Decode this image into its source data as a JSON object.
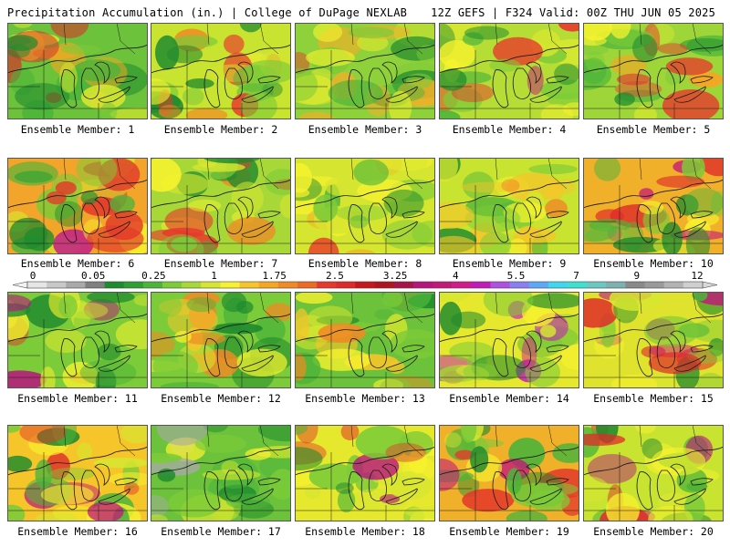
{
  "header": {
    "left": "Precipitation Accumulation (in.) | College of DuPage NEXLAB",
    "right": "12Z GEFS | F324 Valid: 00Z THU JUN 05 2025"
  },
  "caption_prefix": "Ensemble Member: ",
  "members": [
    {
      "label": "Ensemble Member: 1",
      "tint": "#6cc23a",
      "hot": [
        "#d7332a",
        "#f5a623"
      ]
    },
    {
      "label": "Ensemble Member: 2",
      "tint": "#c8e330",
      "hot": [
        "#e8382c",
        "#f08a24"
      ]
    },
    {
      "label": "Ensemble Member: 3",
      "tint": "#8fd13a",
      "hot": [
        "#e23a2a",
        "#f2b02a"
      ]
    },
    {
      "label": "Ensemble Member: 4",
      "tint": "#b6dc36",
      "hot": [
        "#c4177a",
        "#e8382c"
      ]
    },
    {
      "label": "Ensemble Member: 5",
      "tint": "#9ed63a",
      "hot": [
        "#e8382c",
        "#f5a623"
      ]
    },
    {
      "label": "Ensemble Member: 6",
      "tint": "#f3a42a",
      "hot": [
        "#c21a8a",
        "#e23a2a"
      ]
    },
    {
      "label": "Ensemble Member: 7",
      "tint": "#a8d838",
      "hot": [
        "#e8382c",
        "#f08a24"
      ]
    },
    {
      "label": "Ensemble Member: 8",
      "tint": "#d6e630",
      "hot": [
        "#e8382c",
        "#f5a623"
      ]
    },
    {
      "label": "Ensemble Member: 9",
      "tint": "#c8e330",
      "hot": [
        "#f08a24",
        "#f5c52a"
      ]
    },
    {
      "label": "Ensemble Member: 10",
      "tint": "#f0b02a",
      "hot": [
        "#e02a2a",
        "#c4177a"
      ]
    },
    {
      "label": "Ensemble Member: 11",
      "tint": "#7ccb38",
      "hot": [
        "#e23a2a",
        "#b8147e"
      ]
    },
    {
      "label": "Ensemble Member: 12",
      "tint": "#7ccb38",
      "hot": [
        "#f08a24",
        "#f5c52a"
      ]
    },
    {
      "label": "Ensemble Member: 13",
      "tint": "#6cc23a",
      "hot": [
        "#f08a24",
        "#f5c52a"
      ]
    },
    {
      "label": "Ensemble Member: 14",
      "tint": "#e6e82e",
      "hot": [
        "#c21ab8",
        "#d31a8a"
      ]
    },
    {
      "label": "Ensemble Member: 15",
      "tint": "#e0e32e",
      "hot": [
        "#e02a2a",
        "#c4177a"
      ]
    },
    {
      "label": "Ensemble Member: 16",
      "tint": "#f5c52a",
      "hot": [
        "#e23a2a",
        "#c4177a"
      ]
    },
    {
      "label": "Ensemble Member: 17",
      "tint": "#6cc23a",
      "hot": [
        "#a9a9a9",
        "#c8e330"
      ]
    },
    {
      "label": "Ensemble Member: 18",
      "tint": "#e6e82e",
      "hot": [
        "#e23a2a",
        "#b8147e"
      ]
    },
    {
      "label": "Ensemble Member: 19",
      "tint": "#f0b02a",
      "hot": [
        "#e23a2a",
        "#c4177a"
      ]
    },
    {
      "label": "Ensemble Member: 20",
      "tint": "#c8e330",
      "hot": [
        "#e02a2a",
        "#b8147e"
      ]
    }
  ],
  "colorbar": {
    "tick_labels": [
      "0",
      "0.05",
      "0.25",
      "1",
      "1.75",
      "2.5",
      "3.25",
      "4",
      "5.5",
      "7",
      "9",
      "12"
    ],
    "colors": [
      "#e6e6e6",
      "#c8c8c8",
      "#a9a9a9",
      "#7f7f7f",
      "#1f8a2e",
      "#2f9f34",
      "#4cb43a",
      "#7ccb38",
      "#a8d838",
      "#d6e630",
      "#f7f22e",
      "#f5c52a",
      "#f5a623",
      "#f08a24",
      "#ec6a24",
      "#e8382c",
      "#e02a2a",
      "#c8161e",
      "#b0141e",
      "#a8144a",
      "#b8147e",
      "#c4177a",
      "#d31a8a",
      "#c21ab8",
      "#b050e0",
      "#8a7ef0",
      "#5fa8f5",
      "#3fd6f0",
      "#3fe0d0",
      "#6ac8c0",
      "#7fb0b0",
      "#8a8a8a",
      "#9a9a9a",
      "#b3b3b3",
      "#cfcfcf"
    ]
  }
}
